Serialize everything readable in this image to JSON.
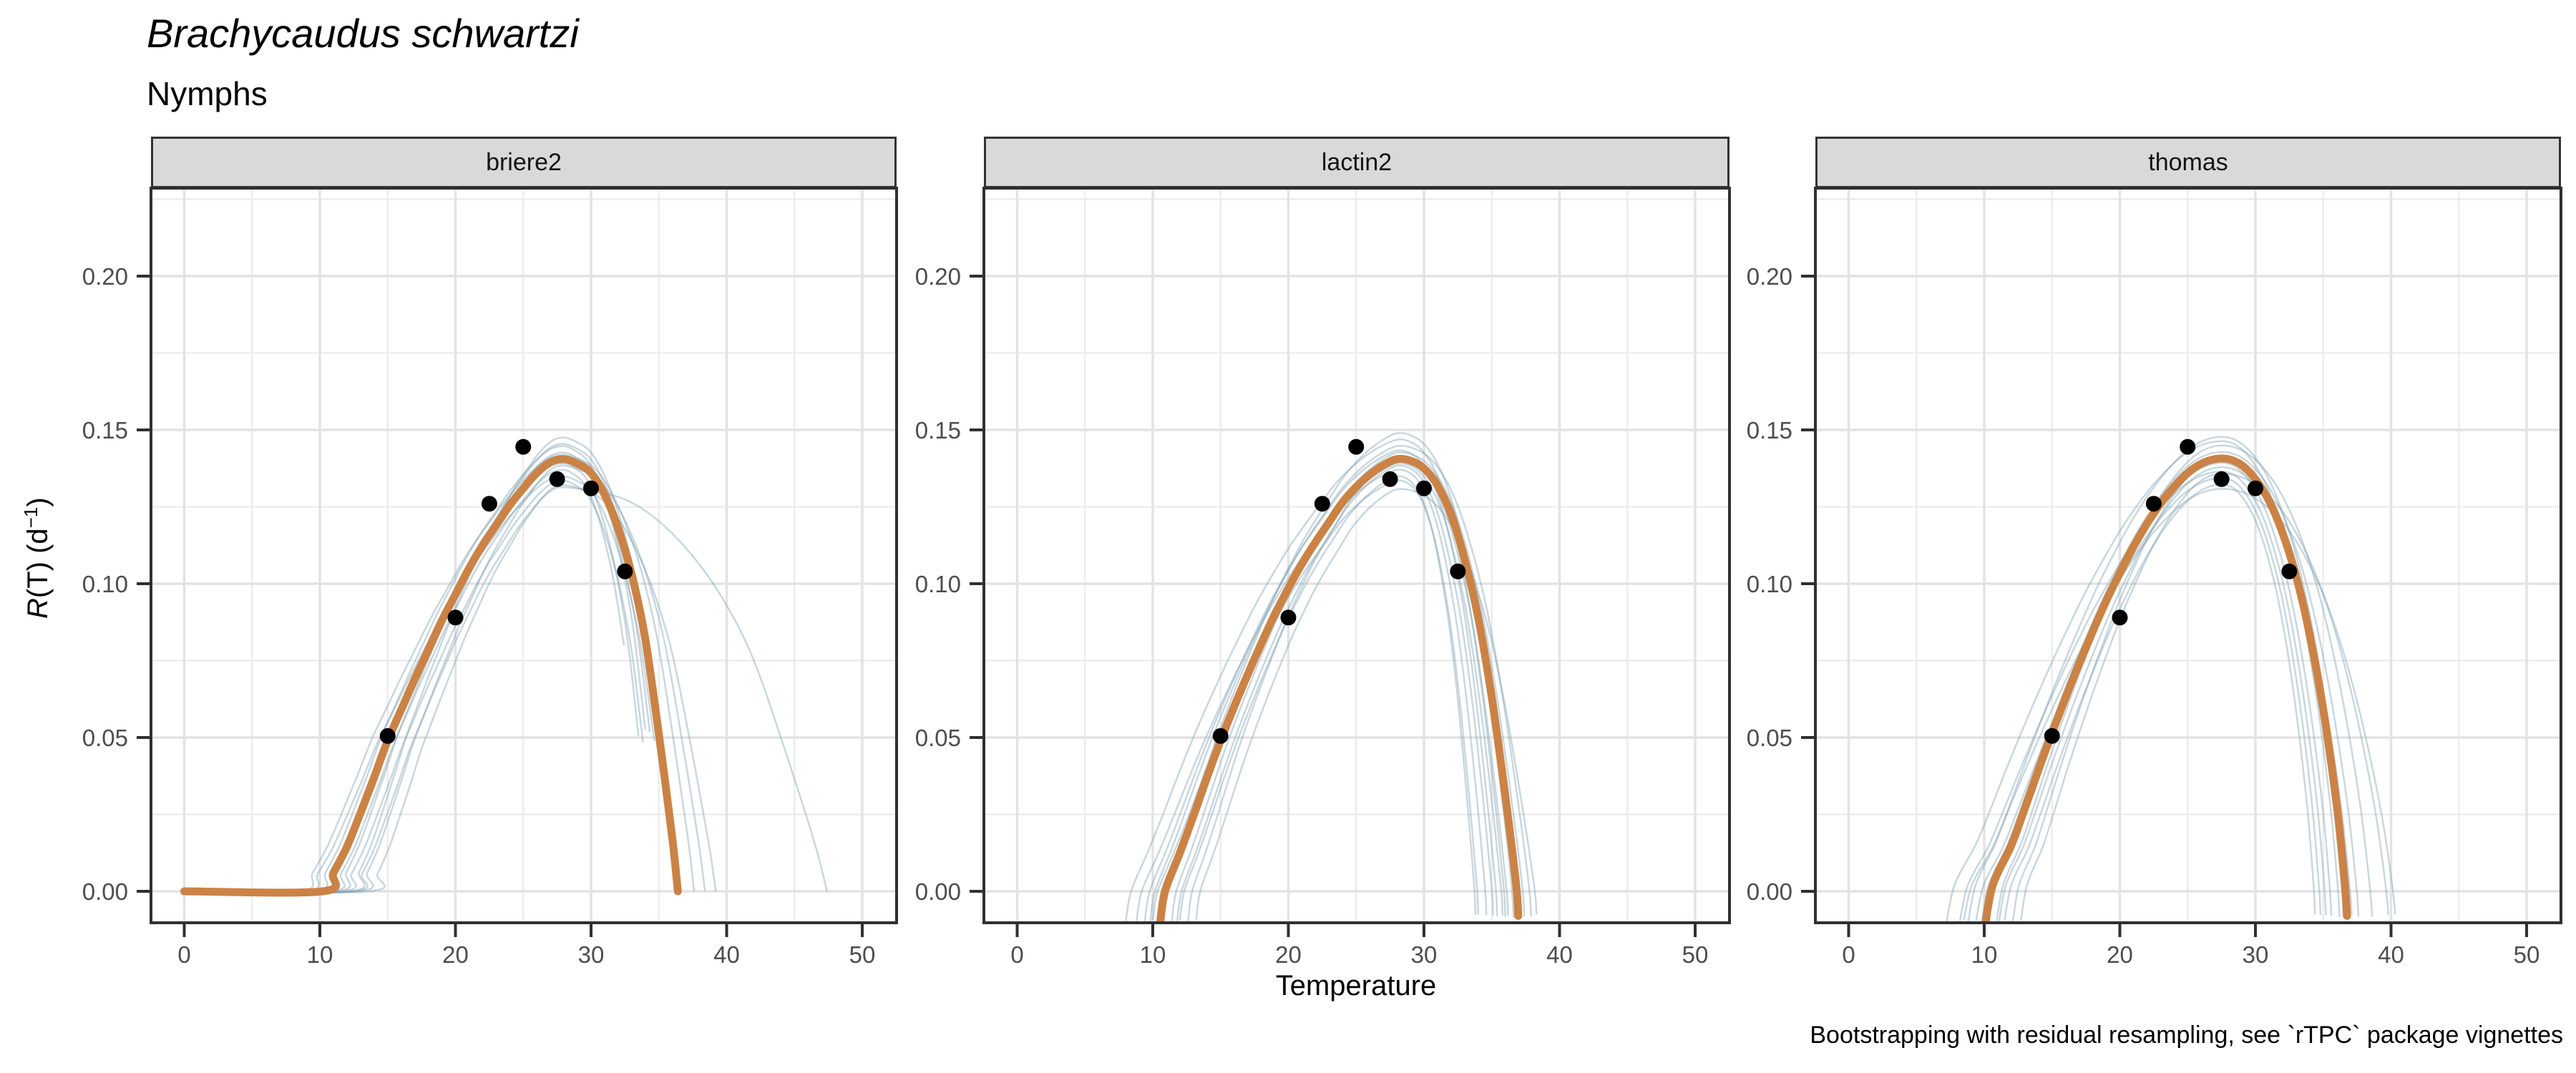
{
  "header": {
    "title": "Brachycaudus schwartzi",
    "subtitle": "Nymphs"
  },
  "caption": "Bootstrapping with residual resampling, see `rTPC` package vignettes",
  "axes": {
    "x_title": "Temperature",
    "y_title": {
      "italic": "R",
      "mid": "(T) (d",
      "sup": "−1",
      "close": ")"
    },
    "x_ticks": [
      0,
      10,
      20,
      30,
      40,
      50
    ],
    "x_minor": [
      5,
      15,
      25,
      35,
      45
    ],
    "y_ticks": [
      {
        "v": 0.0,
        "label": "0.00"
      },
      {
        "v": 0.05,
        "label": "0.05"
      },
      {
        "v": 0.1,
        "label": "0.10"
      },
      {
        "v": 0.15,
        "label": "0.15"
      },
      {
        "v": 0.2,
        "label": "0.20"
      }
    ],
    "y_minor": [
      0.025,
      0.075,
      0.125,
      0.175,
      0.225
    ],
    "x_domain": [
      -2.45,
      52.55
    ],
    "y_domain": [
      -0.0102,
      0.2281
    ]
  },
  "colors": {
    "fit": "#CB8245",
    "bootstrap": "#7FA0B0",
    "points": "#000000",
    "strip_fill": "#D9D9D9",
    "grid_major": "#E3E3E3",
    "grid_minor": "#EDEDED",
    "border": "#303030",
    "tick_label": "#4D4D4D"
  },
  "chart_data": {
    "type": "line+scatter",
    "description": "Thermal performance curves fitted to development-rate data, one facet per model, with bootstrap resampled curves (thin) and fitted curve (thick).",
    "points": {
      "temps": [
        15,
        20,
        22.5,
        25,
        27.5,
        30,
        32.5
      ],
      "rates": [
        0.0505,
        0.089,
        0.126,
        0.1445,
        0.134,
        0.131,
        0.104
      ],
      "repeated_in_every_facet": true
    },
    "facets": [
      {
        "label": "briere2",
        "topt": 28,
        "t_start": 10.2,
        "t_end": 36.4,
        "flat_zero_from": 0,
        "fit": [
          [
            0,
            0
          ],
          [
            10.2,
            0
          ],
          [
            11,
            0.006
          ],
          [
            12,
            0.0145
          ],
          [
            13,
            0.0255
          ],
          [
            14,
            0.037
          ],
          [
            15,
            0.049
          ],
          [
            16,
            0.059
          ],
          [
            17,
            0.069
          ],
          [
            18,
            0.0785
          ],
          [
            19,
            0.088
          ],
          [
            20,
            0.0965
          ],
          [
            21,
            0.105
          ],
          [
            22,
            0.1125
          ],
          [
            23,
            0.119
          ],
          [
            24,
            0.1255
          ],
          [
            25,
            0.131
          ],
          [
            26,
            0.136
          ],
          [
            27,
            0.1395
          ],
          [
            28,
            0.1405
          ],
          [
            29,
            0.139
          ],
          [
            30,
            0.136
          ],
          [
            31,
            0.129
          ],
          [
            32,
            0.118
          ],
          [
            33,
            0.103
          ],
          [
            34,
            0.082
          ],
          [
            35,
            0.051
          ],
          [
            36,
            0.017
          ],
          [
            36.4,
            0
          ]
        ],
        "bootstrap": [
          [
            9.0,
            36.0,
            0.96,
            0.03
          ],
          [
            9.6,
            35.2,
            1.03,
            0.04
          ],
          [
            10.0,
            34.6,
            0.99,
            0.05
          ],
          [
            10.4,
            35.6,
            1.015,
            0.035
          ],
          [
            10.8,
            34.2,
            0.975,
            0.06
          ],
          [
            11.2,
            36.1,
            1.035,
            0.02
          ],
          [
            11.6,
            35.0,
            0.95,
            0.045
          ],
          [
            12.2,
            36.3,
            1.05,
            0.015
          ],
          [
            12.8,
            38.4,
            0.985,
            0
          ],
          [
            13.6,
            39.2,
            0.94,
            0
          ],
          [
            12.4,
            47.4,
            0.935,
            0
          ],
          [
            8.6,
            37.6,
            1.01,
            0
          ]
        ]
      },
      {
        "label": "lactin2",
        "topt": 28,
        "t_start": 10.55,
        "t_end": 36.95,
        "flat_zero_from": null,
        "fit": [
          [
            10.55,
            -0.01
          ],
          [
            10.9,
            0
          ],
          [
            12,
            0.0125
          ],
          [
            13,
            0.0245
          ],
          [
            14,
            0.037
          ],
          [
            15,
            0.049
          ],
          [
            16,
            0.06
          ],
          [
            17,
            0.0705
          ],
          [
            18,
            0.0805
          ],
          [
            19,
            0.09
          ],
          [
            20,
            0.0985
          ],
          [
            21,
            0.1065
          ],
          [
            22,
            0.1135
          ],
          [
            23,
            0.12
          ],
          [
            24,
            0.1265
          ],
          [
            25,
            0.1315
          ],
          [
            26,
            0.1355
          ],
          [
            27,
            0.1385
          ],
          [
            28,
            0.1405
          ],
          [
            29,
            0.14
          ],
          [
            30,
            0.1375
          ],
          [
            31,
            0.132
          ],
          [
            32,
            0.1225
          ],
          [
            33,
            0.108
          ],
          [
            34,
            0.089
          ],
          [
            35,
            0.063
          ],
          [
            36,
            0.031
          ],
          [
            36.8,
            0.002
          ],
          [
            36.95,
            -0.008
          ]
        ],
        "bootstrap": [
          [
            8.0,
            36.0,
            1.045,
            0
          ],
          [
            8.8,
            34.6,
            0.975,
            0
          ],
          [
            9.4,
            35.4,
            1.02,
            0
          ],
          [
            10.0,
            34.0,
            0.95,
            0
          ],
          [
            10.4,
            36.6,
            1.06,
            0
          ],
          [
            10.8,
            35.8,
            0.99,
            0
          ],
          [
            11.4,
            37.4,
            1.015,
            0
          ],
          [
            12.0,
            33.8,
            0.96,
            0
          ],
          [
            12.6,
            36.2,
            1.0,
            0
          ],
          [
            13.2,
            38.3,
            0.93,
            0
          ],
          [
            9.8,
            37.9,
            1.03,
            0
          ],
          [
            11.8,
            35.1,
            0.985,
            0
          ]
        ]
      },
      {
        "label": "thomas",
        "topt": 27.5,
        "t_start": 10.1,
        "t_end": 36.75,
        "flat_zero_from": null,
        "fit": [
          [
            10.1,
            -0.01
          ],
          [
            10.5,
            0
          ],
          [
            11,
            0.006
          ],
          [
            12,
            0.015
          ],
          [
            13,
            0.027
          ],
          [
            14,
            0.0395
          ],
          [
            15,
            0.0515
          ],
          [
            16,
            0.063
          ],
          [
            17,
            0.074
          ],
          [
            18,
            0.0845
          ],
          [
            19,
            0.0945
          ],
          [
            20,
            0.1035
          ],
          [
            21,
            0.112
          ],
          [
            22,
            0.1195
          ],
          [
            23,
            0.126
          ],
          [
            24,
            0.1315
          ],
          [
            25,
            0.136
          ],
          [
            26,
            0.139
          ],
          [
            27,
            0.1405
          ],
          [
            28,
            0.1405
          ],
          [
            29,
            0.1385
          ],
          [
            30,
            0.134
          ],
          [
            31,
            0.127
          ],
          [
            32,
            0.1165
          ],
          [
            33,
            0.1025
          ],
          [
            34,
            0.0835
          ],
          [
            35,
            0.059
          ],
          [
            36,
            0.028
          ],
          [
            36.6,
            0.002
          ],
          [
            36.75,
            -0.008
          ]
        ],
        "bootstrap": [
          [
            7.2,
            36.2,
            1.04,
            0
          ],
          [
            8.2,
            35.2,
            0.97,
            0
          ],
          [
            8.8,
            36.9,
            1.05,
            0
          ],
          [
            9.4,
            34.8,
            0.955,
            0
          ],
          [
            9.8,
            37.6,
            1.015,
            0
          ],
          [
            10.3,
            35.6,
            0.99,
            0
          ],
          [
            10.9,
            38.6,
            1.03,
            0
          ],
          [
            11.5,
            34.4,
            0.94,
            0
          ],
          [
            12.1,
            36.5,
            1.0,
            0
          ],
          [
            12.7,
            39.8,
            0.965,
            0
          ],
          [
            8.5,
            40.3,
            0.93,
            0
          ],
          [
            11.1,
            37.1,
            0.98,
            0
          ]
        ]
      }
    ],
    "legend": "none",
    "grid": true
  }
}
